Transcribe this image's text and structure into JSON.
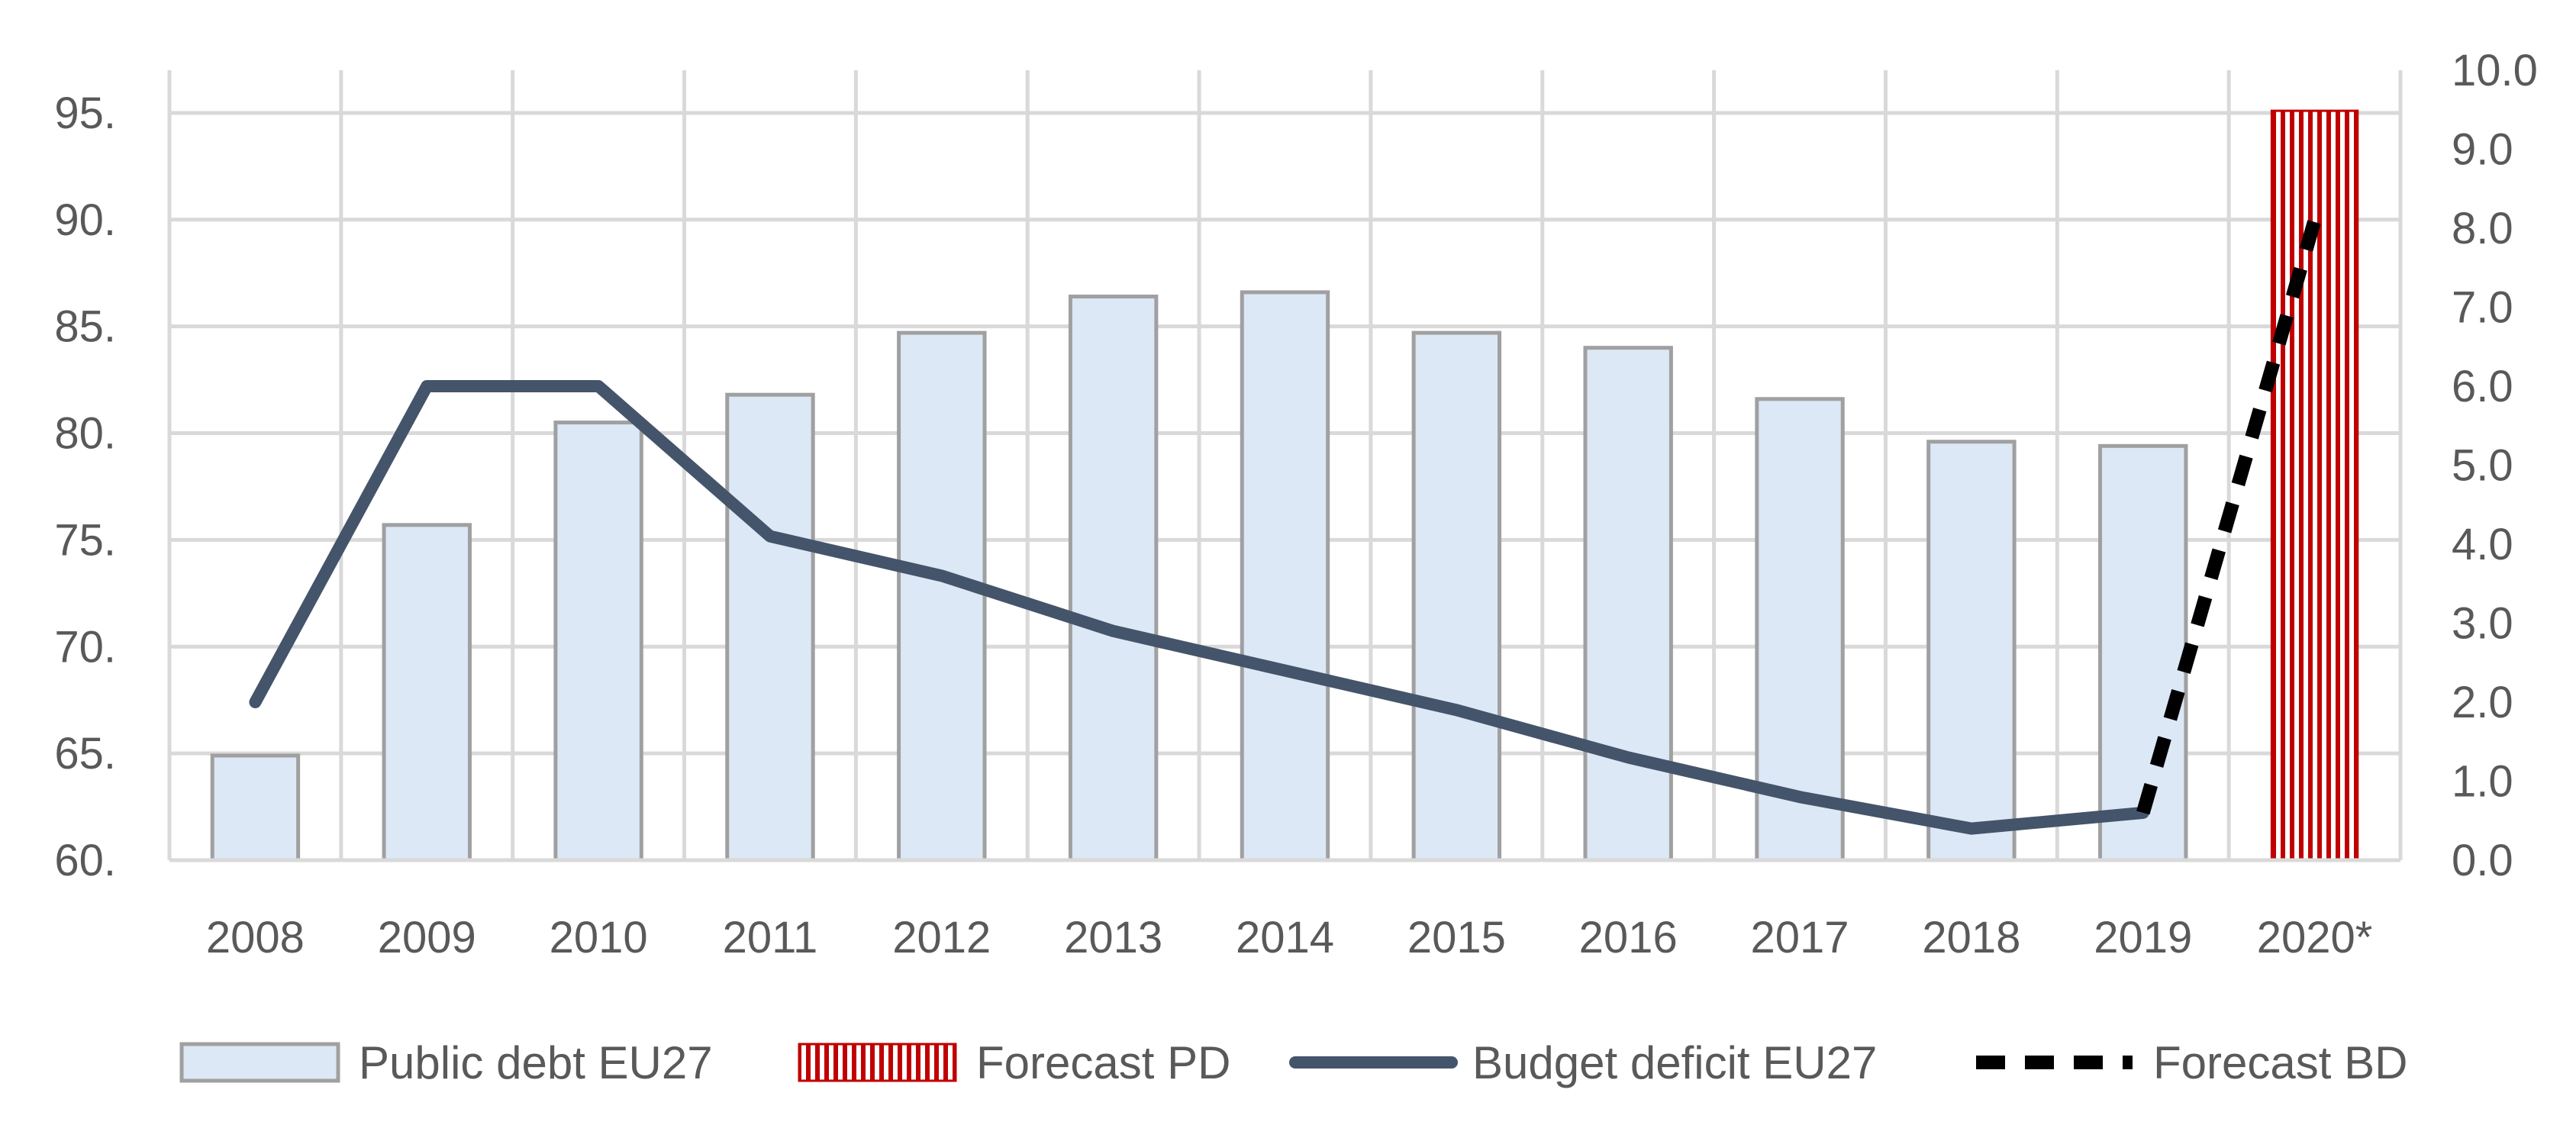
{
  "chart_data": {
    "type": "bar",
    "title": "",
    "xlabel": "",
    "ylabel": "",
    "categories": [
      "2008",
      "2009",
      "2010",
      "2011",
      "2012",
      "2013",
      "2014",
      "2015",
      "2016",
      "2017",
      "2018",
      "2019",
      "2020*"
    ],
    "left_axis": {
      "ylim": [
        60,
        97
      ],
      "ticks": [
        60,
        65,
        70,
        75,
        80,
        85,
        90,
        95
      ],
      "tick_labels": [
        "60.",
        "65.",
        "70.",
        "75.",
        "80.",
        "85.",
        "90.",
        "95."
      ]
    },
    "right_axis": {
      "ylim": [
        0,
        10
      ],
      "ticks": [
        0,
        1,
        2,
        3,
        4,
        5,
        6,
        7,
        8,
        9,
        10
      ],
      "tick_labels": [
        "0.0",
        "1.0",
        "2.0",
        "3.0",
        "4.0",
        "5.0",
        "6.0",
        "7.0",
        "8.0",
        "9.0",
        "10.0"
      ]
    },
    "grid": true,
    "series": [
      {
        "name": "Public debt EU27",
        "type": "bar",
        "axis": "left",
        "values": [
          64.9,
          75.7,
          80.5,
          81.8,
          84.7,
          86.4,
          86.6,
          84.7,
          84.0,
          81.6,
          79.6,
          79.4,
          null
        ],
        "color": "#dce8f5",
        "edge_color": "#a0a0a0"
      },
      {
        "name": "Forecast PD",
        "type": "bar",
        "axis": "left",
        "values": [
          null,
          null,
          null,
          null,
          null,
          null,
          null,
          null,
          null,
          null,
          null,
          null,
          95.1
        ],
        "color": "#c00000",
        "pattern": "vertical-stripes"
      },
      {
        "name": "Budget deficit EU27",
        "type": "line",
        "axis": "right",
        "values": [
          2.0,
          6.0,
          6.0,
          4.1,
          3.6,
          2.9,
          2.4,
          1.9,
          1.3,
          0.8,
          0.4,
          0.6,
          null
        ],
        "color": "#44546a",
        "style": "solid"
      },
      {
        "name": "Forecast BD",
        "type": "line",
        "axis": "right",
        "values": [
          null,
          null,
          null,
          null,
          null,
          null,
          null,
          null,
          null,
          null,
          null,
          0.6,
          8.1
        ],
        "color": "#000000",
        "style": "dashed"
      }
    ],
    "legend": {
      "position": "bottom",
      "entries": [
        "Public debt EU27",
        "Forecast PD",
        "Budget deficit EU27",
        "Forecast BD"
      ]
    }
  }
}
